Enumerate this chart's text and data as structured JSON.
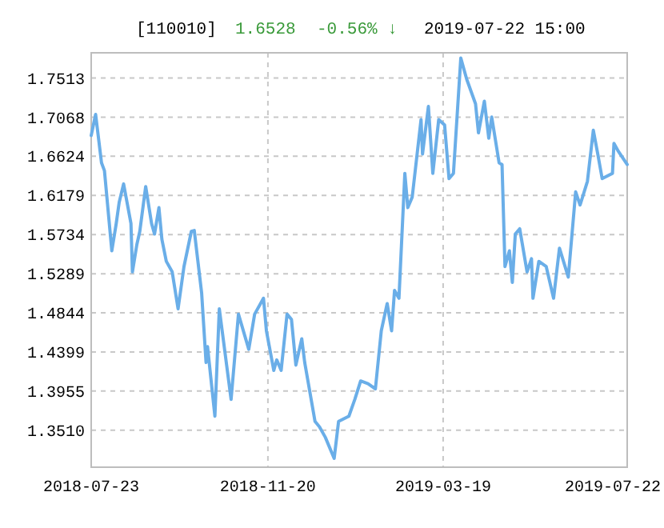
{
  "chart_data": {
    "type": "line",
    "title": "[110010]",
    "annotations": [
      "1.6528",
      "-0.56% ↓",
      "2019-07-22 15:00"
    ],
    "xlim": [
      "2018-07-23",
      "2019-07-22"
    ],
    "xticks": [
      {
        "value": "2018-07-23",
        "label": "2018-07-23"
      },
      {
        "value": "2018-11-20",
        "label": "2018-11-20"
      },
      {
        "value": "2019-03-19",
        "label": "2019-03-19"
      },
      {
        "value": "2019-07-22",
        "label": "2019-07-22"
      }
    ],
    "ylim": [
      1.309,
      1.78
    ],
    "yticks": [
      {
        "value": 1.351,
        "label": "1.3510"
      },
      1.3955,
      1.4399,
      1.4844,
      1.5289,
      1.5734,
      1.6179,
      1.6624,
      1.7068,
      1.7513
    ],
    "grid": true,
    "marker": "none",
    "line_style": "solid",
    "series": [
      {
        "color": "#6aaee8",
        "x": [
          "2018-07-23",
          "2018-07-26",
          "2018-07-30",
          "2018-08-01",
          "2018-08-06",
          "2018-08-09",
          "2018-08-11",
          "2018-08-14",
          "2018-08-19",
          "2018-08-20",
          "2018-08-23",
          "2018-08-25",
          "2018-08-29",
          "2018-09-02",
          "2018-09-04",
          "2018-09-07",
          "2018-09-09",
          "2018-09-12",
          "2018-09-16",
          "2018-09-20",
          "2018-09-24",
          "2018-09-29",
          "2018-10-01",
          "2018-10-06",
          "2018-10-09",
          "2018-10-10",
          "2018-10-15",
          "2018-10-18",
          "2018-10-26",
          "2018-10-31",
          "2018-11-07",
          "2018-11-11",
          "2018-11-15",
          "2018-11-17",
          "2018-11-19",
          "2018-11-24",
          "2018-11-26",
          "2018-11-29",
          "2018-12-03",
          "2018-12-06",
          "2018-12-09",
          "2018-12-13",
          "2018-12-15",
          "2018-12-22",
          "2018-12-25",
          "2018-12-29",
          "2019-01-04",
          "2019-01-07",
          "2019-01-14",
          "2019-01-18",
          "2019-01-22",
          "2019-01-27",
          "2019-02-01",
          "2019-02-05",
          "2019-02-09",
          "2019-02-12",
          "2019-02-14",
          "2019-02-17",
          "2019-02-21",
          "2019-02-23",
          "2019-02-26",
          "2019-03-04",
          "2019-03-05",
          "2019-03-09",
          "2019-03-12",
          "2019-03-16",
          "2019-03-20",
          "2019-03-23",
          "2019-03-26",
          "2019-03-31",
          "2019-04-04",
          "2019-04-10",
          "2019-04-12",
          "2019-04-16",
          "2019-04-19",
          "2019-04-21",
          "2019-04-26",
          "2019-04-28",
          "2019-04-30",
          "2019-05-03",
          "2019-05-05",
          "2019-05-07",
          "2019-05-10",
          "2019-05-15",
          "2019-05-18",
          "2019-05-19",
          "2019-05-23",
          "2019-05-28",
          "2019-06-02",
          "2019-06-06",
          "2019-06-12",
          "2019-06-17",
          "2019-06-20",
          "2019-06-25",
          "2019-06-29",
          "2019-07-02",
          "2019-07-05",
          "2019-07-12",
          "2019-07-13",
          "2019-07-16",
          "2019-07-22"
        ],
        "values": [
          1.686,
          1.71,
          1.655,
          1.646,
          1.555,
          1.586,
          1.61,
          1.631,
          1.586,
          1.531,
          1.562,
          1.577,
          1.628,
          1.586,
          1.574,
          1.604,
          1.568,
          1.543,
          1.531,
          1.489,
          1.537,
          1.577,
          1.578,
          1.507,
          1.428,
          1.446,
          1.367,
          1.489,
          1.386,
          1.483,
          1.443,
          1.483,
          1.495,
          1.501,
          1.464,
          1.419,
          1.431,
          1.419,
          1.483,
          1.477,
          1.425,
          1.455,
          1.428,
          1.361,
          1.355,
          1.343,
          1.319,
          1.361,
          1.367,
          1.386,
          1.407,
          1.404,
          1.398,
          1.464,
          1.495,
          1.464,
          1.51,
          1.501,
          1.643,
          1.604,
          1.616,
          1.704,
          1.665,
          1.719,
          1.643,
          1.704,
          1.698,
          1.637,
          1.643,
          1.774,
          1.75,
          1.722,
          1.689,
          1.725,
          1.683,
          1.707,
          1.655,
          1.653,
          1.537,
          1.555,
          1.519,
          1.574,
          1.58,
          1.531,
          1.546,
          1.501,
          1.543,
          1.537,
          1.501,
          1.558,
          1.525,
          1.622,
          1.607,
          1.634,
          1.692,
          1.665,
          1.637,
          1.643,
          1.677,
          1.668,
          1.653
        ]
      }
    ]
  }
}
